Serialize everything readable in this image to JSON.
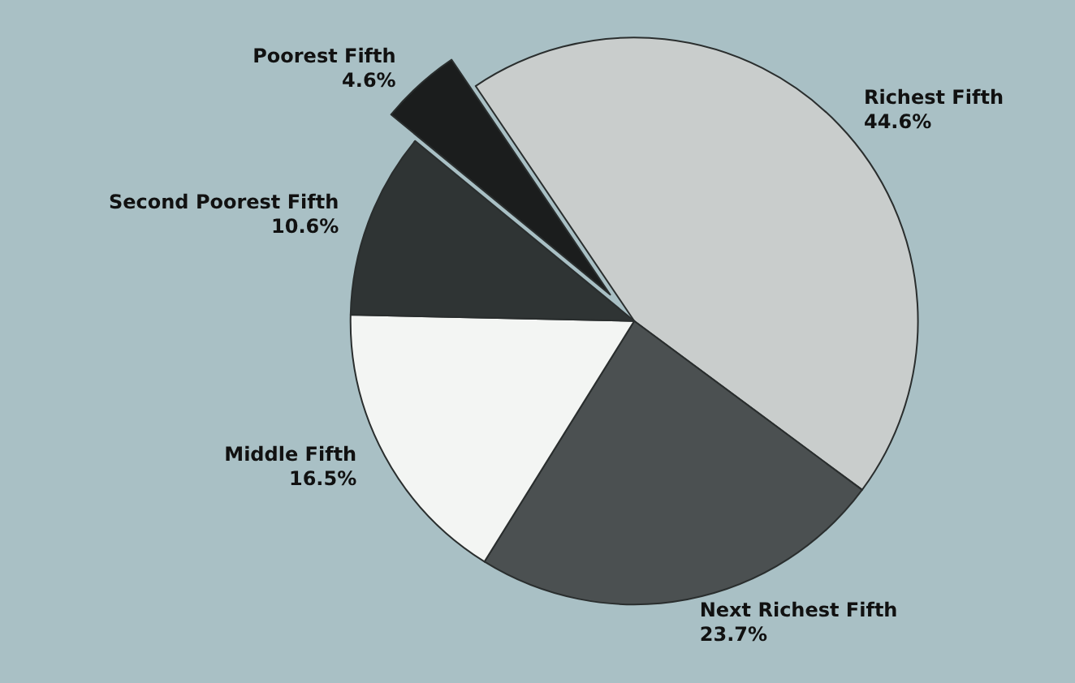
{
  "chart_data": {
    "type": "pie",
    "categories": [
      "Richest Fifth",
      "Next Richest Fifth",
      "Middle Fifth",
      "Second Poorest Fifth",
      "Poorest Fifth"
    ],
    "values": [
      44.6,
      23.7,
      16.5,
      10.6,
      4.6
    ],
    "colors": [
      "#c9cdcc",
      "#4b5051",
      "#f3f5f3",
      "#2f3434",
      "#1b1d1d"
    ],
    "value_labels": [
      "44.6%",
      "23.7%",
      "16.5%",
      "10.6%",
      "4.6%"
    ],
    "legend": false
  }
}
